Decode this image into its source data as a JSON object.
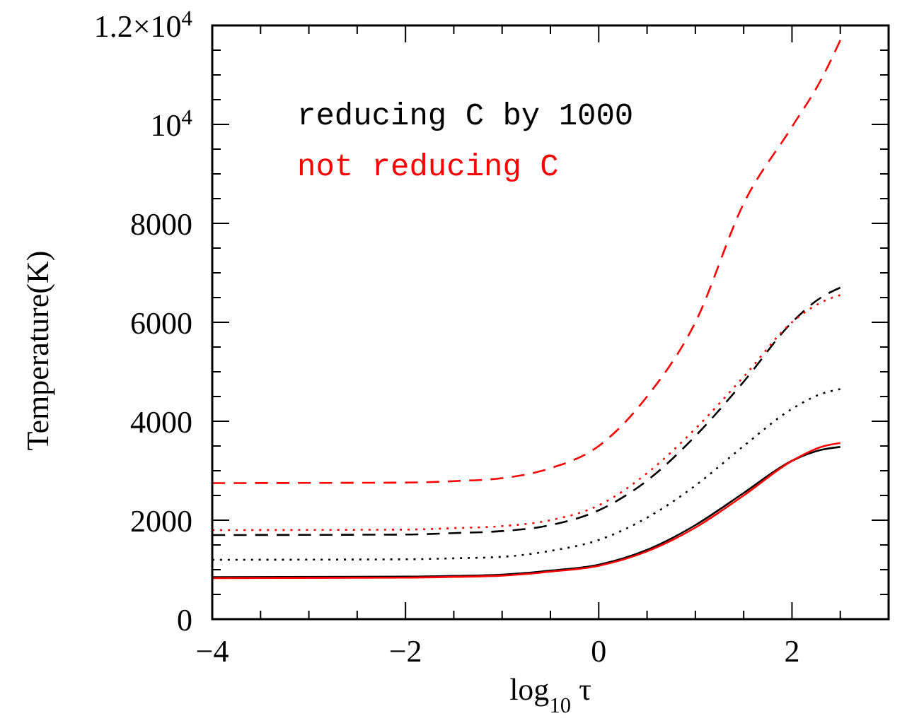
{
  "chart_data": {
    "type": "line",
    "xlabel": "log$_{10}$ τ",
    "ylabel": "Temperature(K)",
    "xlim": [
      -4,
      3
    ],
    "ylim": [
      0,
      12000
    ],
    "xticks": [
      -4,
      {
        "value": -3.5,
        "label": null
      },
      {
        "value": -3,
        "label": null
      },
      {
        "value": -2.5,
        "label": null
      },
      -2,
      {
        "value": -1.5,
        "label": null
      },
      {
        "value": -1,
        "label": null
      },
      {
        "value": -0.5,
        "label": null
      },
      0,
      {
        "value": 0.5,
        "label": null
      },
      {
        "value": 1,
        "label": null
      },
      {
        "value": 1.5,
        "label": null
      },
      2,
      {
        "value": 2.5,
        "label": null
      }
    ],
    "yticks": [
      0,
      {
        "value": 500,
        "label": null
      },
      {
        "value": 1000,
        "label": null
      },
      {
        "value": 1500,
        "label": null
      },
      2000,
      {
        "value": 2500,
        "label": null
      },
      {
        "value": 3000,
        "label": null
      },
      {
        "value": 3500,
        "label": null
      },
      4000,
      {
        "value": 4500,
        "label": null
      },
      {
        "value": 5000,
        "label": null
      },
      {
        "value": 5500,
        "label": null
      },
      6000,
      {
        "value": 6500,
        "label": null
      },
      {
        "value": 7000,
        "label": null
      },
      {
        "value": 7500,
        "label": null
      },
      8000,
      {
        "value": 8500,
        "label": null
      },
      {
        "value": 9000,
        "label": null
      },
      {
        "value": 9500,
        "label": null
      },
      {
        "value": 10000,
        "label": "10$^{4}$"
      },
      {
        "value": 10500,
        "label": null
      },
      {
        "value": 11000,
        "label": null
      },
      {
        "value": 11500,
        "label": null
      },
      {
        "value": 12000,
        "label": "1.2×10$^{4}$"
      }
    ],
    "grid": false,
    "legend": "top left",
    "x": [
      -4,
      -2,
      -1.5,
      -1,
      -0.5,
      0,
      0.5,
      1,
      1.5,
      2,
      2.3,
      2.5
    ],
    "series": [
      {
        "name": "reducing C by 1000",
        "color": "#000000",
        "line_style": "solid",
        "values": [
          850,
          860,
          875,
          900,
          980,
          1100,
          1400,
          1900,
          2550,
          3200,
          3420,
          3480
        ]
      },
      {
        "color": "#000000",
        "line_style": "dashed",
        "values": [
          1700,
          1710,
          1740,
          1780,
          1900,
          2200,
          2800,
          3700,
          4800,
          6000,
          6500,
          6700
        ]
      },
      {
        "color": "#000000",
        "line_style": "dotted",
        "values": [
          1200,
          1210,
          1230,
          1260,
          1380,
          1600,
          2050,
          2700,
          3500,
          4250,
          4550,
          4650
        ]
      },
      {
        "name": "not reducing C",
        "color": "#ff0000",
        "line_style": "solid",
        "values": [
          830,
          840,
          855,
          880,
          960,
          1080,
          1370,
          1850,
          2500,
          3200,
          3480,
          3560
        ]
      },
      {
        "color": "#ff0000",
        "line_style": "dashed",
        "values": [
          2750,
          2760,
          2790,
          2850,
          3050,
          3500,
          4500,
          6000,
          8400,
          9950,
          10900,
          11700
        ]
      },
      {
        "color": "#ff0000",
        "line_style": "dotted",
        "values": [
          1800,
          1810,
          1840,
          1880,
          2000,
          2300,
          2950,
          3850,
          4900,
          6000,
          6400,
          6550
        ]
      }
    ]
  }
}
